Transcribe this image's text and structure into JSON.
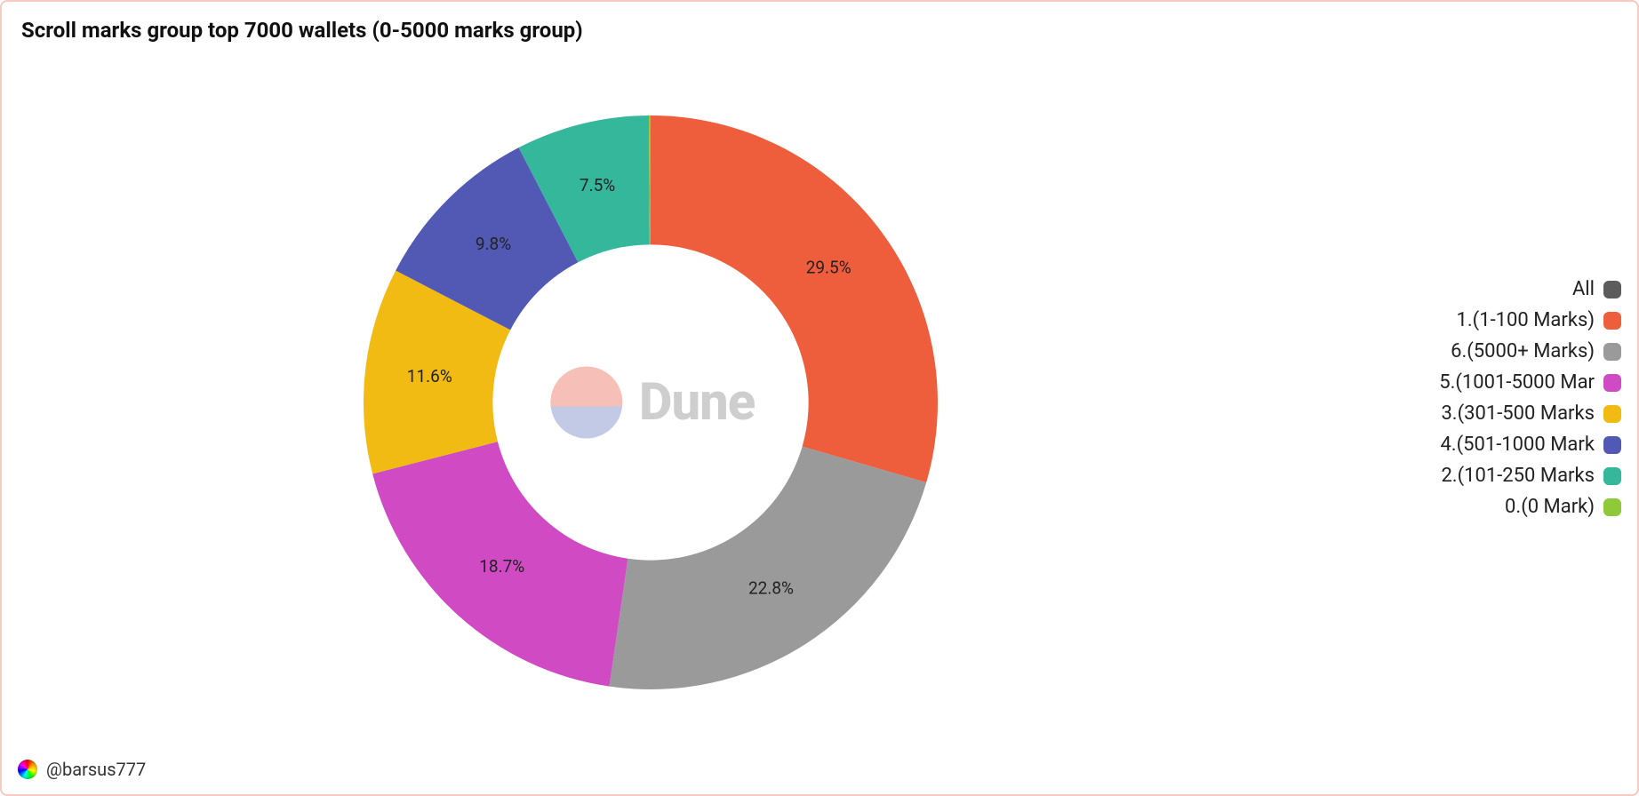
{
  "card": {
    "border_color": "#f7c9c1",
    "background": "#ffffff"
  },
  "title": "Scroll marks group top 7000 wallets (0-5000 marks group)",
  "chart": {
    "type": "donut",
    "inner_radius_pct": 55,
    "outer_radius_pct": 100,
    "start_angle_deg": 0,
    "direction": "clockwise",
    "label_fontsize": 20,
    "label_color": "#222222",
    "slices": [
      {
        "key": "s1",
        "label": "1.(1-100 Marks)",
        "value": 29.5,
        "display": "29.5%",
        "color": "#ee5d3c"
      },
      {
        "key": "s6",
        "label": "6.(5000+ Marks)",
        "value": 22.8,
        "display": "22.8%",
        "color": "#9a9a9a"
      },
      {
        "key": "s5",
        "label": "5.(1001-5000 Marks)",
        "value": 18.7,
        "display": "18.7%",
        "color": "#cf4ac3"
      },
      {
        "key": "s3",
        "label": "3.(301-500 Marks)",
        "value": 11.6,
        "display": "11.6%",
        "color": "#f2bb13"
      },
      {
        "key": "s4",
        "label": "4.(501-1000 Marks)",
        "value": 9.8,
        "display": "9.8%",
        "color": "#5159b5"
      },
      {
        "key": "s2",
        "label": "2.(101-250 Marks)",
        "value": 7.5,
        "display": "7.5%",
        "color": "#34b79b"
      },
      {
        "key": "s0",
        "label": "0.(0 Mark)",
        "value": 0.1,
        "display": "",
        "color": "#8fc93a"
      }
    ]
  },
  "legend": {
    "fontsize": 22,
    "text_color": "#222222",
    "items": [
      {
        "label": "All",
        "color": "#5c5c5c"
      },
      {
        "label": "1.(1-100 Marks)",
        "color": "#ee5d3c"
      },
      {
        "label": "6.(5000+ Marks)",
        "color": "#9a9a9a"
      },
      {
        "label": "5.(1001-5000 Mar",
        "color": "#cf4ac3"
      },
      {
        "label": "3.(301-500 Marks",
        "color": "#f2bb13"
      },
      {
        "label": "4.(501-1000 Mark",
        "color": "#5159b5"
      },
      {
        "label": "2.(101-250 Marks",
        "color": "#34b79b"
      },
      {
        "label": "0.(0 Mark)",
        "color": "#8fc93a"
      }
    ]
  },
  "watermark": {
    "text": "Dune",
    "circle_top_color": "rgba(244,180,170,0.85)",
    "circle_bottom_color": "rgba(170,180,220,0.7)"
  },
  "footer": {
    "author": "@barsus777"
  }
}
